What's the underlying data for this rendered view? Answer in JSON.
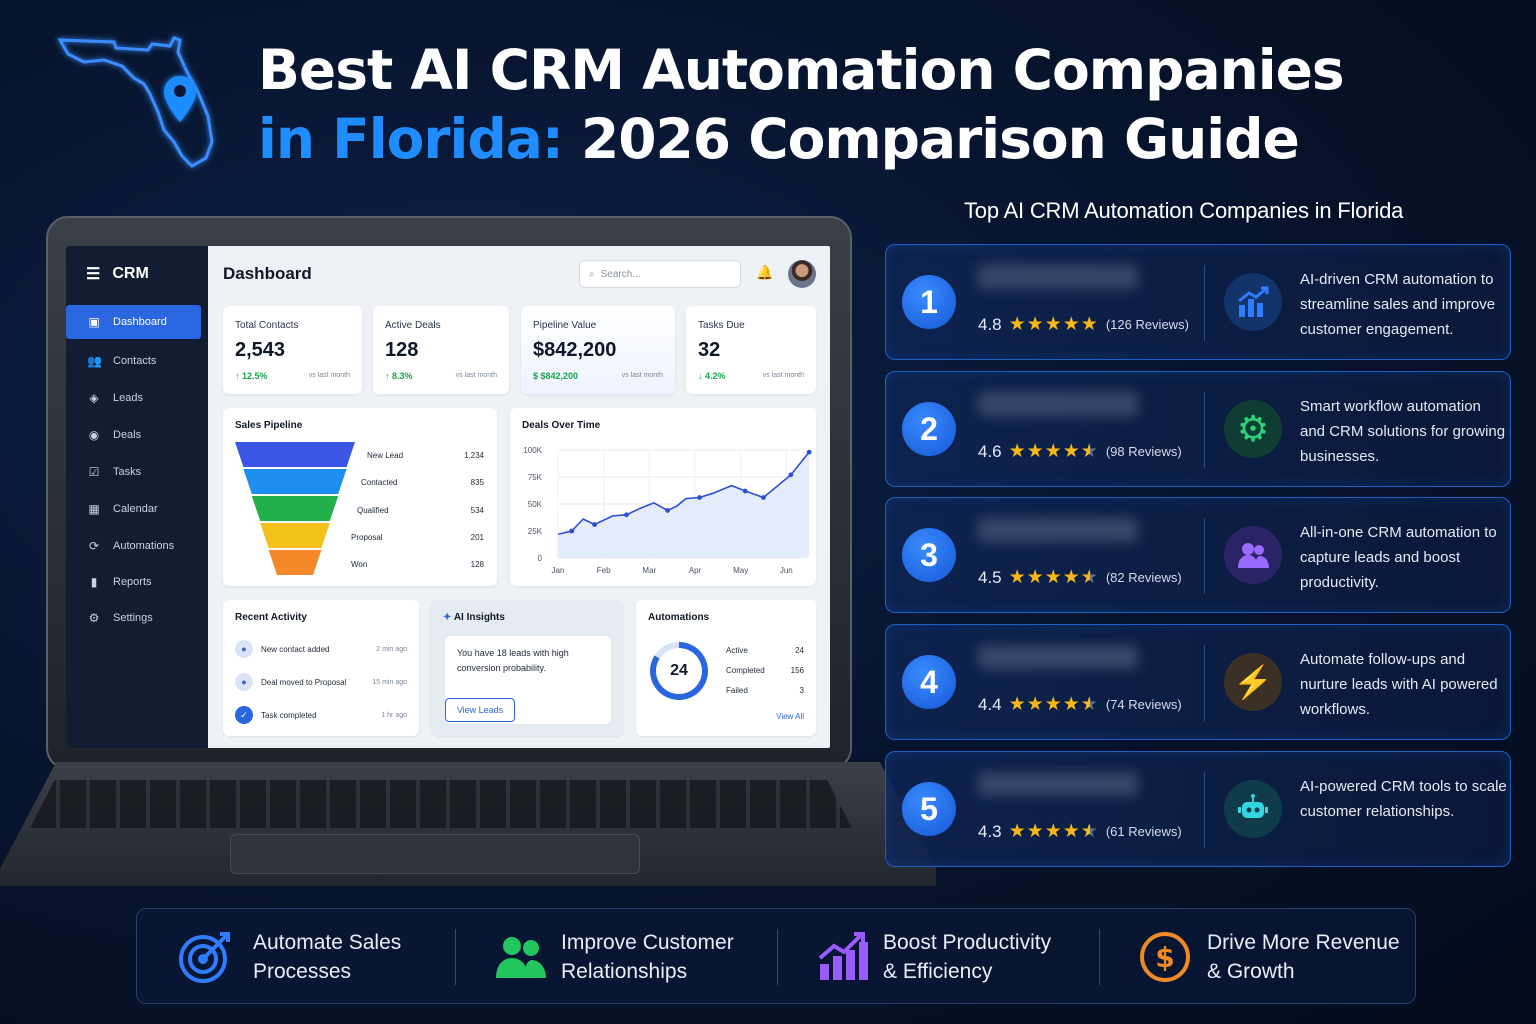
{
  "header": {
    "title_line1": "Best AI CRM Automation Companies",
    "title_line2_highlight": "in Florida:",
    "title_line2_rest": " 2026 Comparison Guide",
    "map_icon": "florida-map-pin-icon"
  },
  "colors": {
    "accent_blue": "#1f8cff",
    "primary": "#2a66e0",
    "star": "#f5b71b",
    "background": "#071530"
  },
  "crm": {
    "brand": "CRM",
    "sidebar": [
      {
        "label": "Dashboard",
        "icon": "dashboard-icon",
        "active": true
      },
      {
        "label": "Contacts",
        "icon": "contacts-icon"
      },
      {
        "label": "Leads",
        "icon": "leads-icon"
      },
      {
        "label": "Deals",
        "icon": "deals-icon"
      },
      {
        "label": "Tasks",
        "icon": "tasks-icon"
      },
      {
        "label": "Calendar",
        "icon": "calendar-icon"
      },
      {
        "label": "Automations",
        "icon": "automations-icon"
      },
      {
        "label": "Reports",
        "icon": "reports-icon"
      },
      {
        "label": "Settings",
        "icon": "settings-icon"
      }
    ],
    "page_title": "Dashboard",
    "search_placeholder": "Search...",
    "kpis": [
      {
        "label": "Total Contacts",
        "value": "2,543",
        "delta": "↑ 12.5%",
        "compare": "vs last month"
      },
      {
        "label": "Active Deals",
        "value": "128",
        "delta": "↑ 8.3%",
        "compare": "vs last month"
      },
      {
        "label": "Pipeline Value",
        "value": "$842,200",
        "delta": "$ $842,200",
        "compare": "vs last month"
      },
      {
        "label": "Tasks Due",
        "value": "32",
        "delta": "↓ 4.2%",
        "compare": "vs last month"
      }
    ],
    "pipeline": {
      "title": "Sales Pipeline",
      "stages": [
        {
          "name": "New Lead",
          "count": "1,234",
          "color": "#3b55e6"
        },
        {
          "name": "Contacted",
          "count": "835",
          "color": "#1d8ff0"
        },
        {
          "name": "Qualified",
          "count": "534",
          "color": "#22b04b"
        },
        {
          "name": "Proposal",
          "count": "201",
          "color": "#f2c21b"
        },
        {
          "name": "Won",
          "count": "128",
          "color": "#f5892a"
        }
      ]
    },
    "deals_chart": {
      "title": "Deals Over Time",
      "yticks": [
        "100K",
        "75K",
        "50K",
        "25K",
        "0"
      ],
      "xticks": [
        "Jan",
        "Feb",
        "Mar",
        "Apr",
        "May",
        "Jun"
      ]
    },
    "recent_activity": {
      "title": "Recent Activity",
      "items": [
        {
          "text": "New contact added",
          "time": "2 min ago"
        },
        {
          "text": "Deal moved to Proposal",
          "time": "15 min ago"
        },
        {
          "text": "Task completed",
          "time": "1 hr ago"
        }
      ]
    },
    "ai_insights": {
      "title": "AI Insights",
      "message": "You have 18 leads with high conversion probability.",
      "button": "View Leads"
    },
    "automations": {
      "title": "Automations",
      "total": "24",
      "rows": [
        {
          "label": "Active",
          "value": "24"
        },
        {
          "label": "Completed",
          "value": "156"
        },
        {
          "label": "Failed",
          "value": "3"
        }
      ],
      "link": "View All"
    }
  },
  "chart_data": {
    "type": "line",
    "title": "Deals Over Time",
    "categories": [
      "Jan",
      "Feb",
      "Mar",
      "Apr",
      "May",
      "Jun"
    ],
    "x": [
      0,
      0.3,
      0.55,
      0.8,
      1.2,
      1.5,
      1.8,
      2.1,
      2.4,
      2.6,
      2.8,
      3.1,
      3.4,
      3.8,
      4.1,
      4.5,
      4.9,
      5.1,
      5.5
    ],
    "values": [
      22000,
      25000,
      36000,
      31000,
      39000,
      40000,
      46000,
      51000,
      44000,
      48000,
      55000,
      56000,
      60000,
      67000,
      62000,
      56000,
      70000,
      77000,
      98000
    ],
    "ylim": [
      0,
      100000
    ],
    "grid": true
  },
  "ranking": {
    "title": "Top AI CRM Automation Companies in Florida",
    "companies": [
      {
        "rank": "1",
        "rating": "4.8",
        "stars": 5,
        "reviews": "(126 Reviews)",
        "icon": "growth-chart-icon",
        "icon_color": "#2f7cff",
        "icon_bg": "#13336b",
        "description": "AI-driven CRM automation to streamline sales and improve customer engagement."
      },
      {
        "rank": "2",
        "rating": "4.6",
        "stars": 4.5,
        "reviews": "(98 Reviews)",
        "icon": "gear-icon",
        "icon_color": "#2fd27a",
        "icon_bg": "#0f3d33",
        "description": "Smart workflow automation and CRM solutions for growing businesses."
      },
      {
        "rank": "3",
        "rating": "4.5",
        "stars": 4.5,
        "reviews": "(82 Reviews)",
        "icon": "users-icon",
        "icon_color": "#9a6bff",
        "icon_bg": "#2a2366",
        "description": "All-in-one CRM automation to capture leads and boost productivity."
      },
      {
        "rank": "4",
        "rating": "4.4",
        "stars": 4.5,
        "reviews": "(74 Reviews)",
        "icon": "lightning-icon",
        "icon_color": "#f5a524",
        "icon_bg": "#3b3026",
        "description": "Automate follow-ups and nurture leads with AI powered workflows."
      },
      {
        "rank": "5",
        "rating": "4.3",
        "stars": 4.5,
        "reviews": "(61 Reviews)",
        "icon": "robot-icon",
        "icon_color": "#33d6df",
        "icon_bg": "#0f3b4a",
        "description": "AI-powered CRM tools to scale customer relationships."
      }
    ]
  },
  "benefits": [
    {
      "line1": "Automate Sales",
      "line2": "Processes",
      "icon": "target-icon",
      "color": "#2f7cff"
    },
    {
      "line1": "Improve Customer",
      "line2": "Relationships",
      "icon": "users-icon",
      "color": "#22c55e"
    },
    {
      "line1": "Boost Productivity",
      "line2": "& Efficiency",
      "icon": "bar-growth-icon",
      "color": "#9b5cff"
    },
    {
      "line1": "Drive More Revenue",
      "line2": "& Growth",
      "icon": "dollar-icon",
      "color": "#f08a24"
    }
  ]
}
